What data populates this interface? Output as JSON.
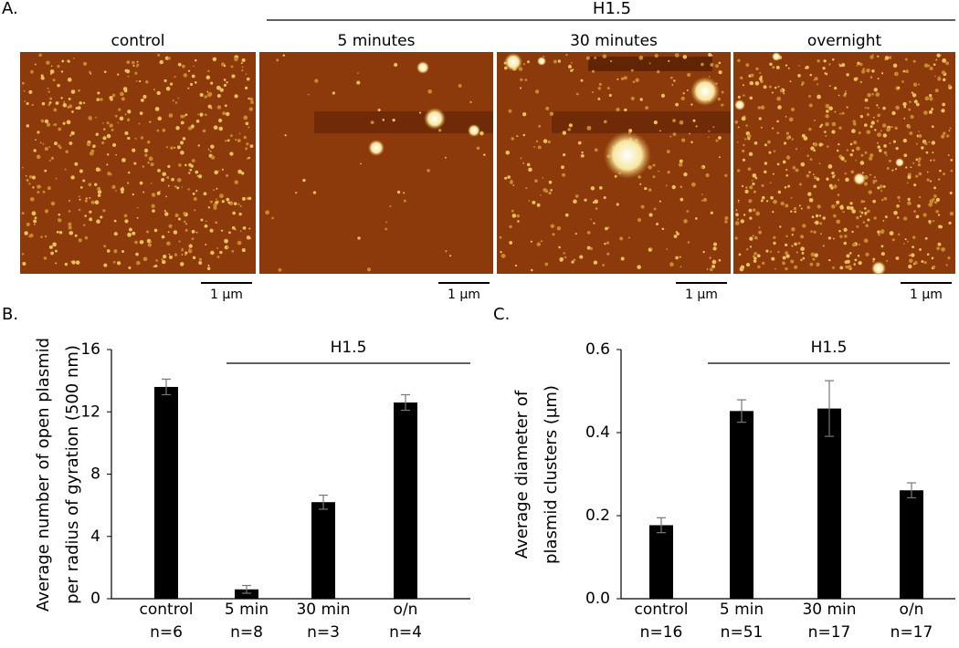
{
  "panel_a": {
    "label": "A.",
    "group_label": "H1.5",
    "images": [
      {
        "title": "control",
        "scale": "1 µm"
      },
      {
        "title": "5 minutes",
        "scale": "1 µm"
      },
      {
        "title": "30 minutes",
        "scale": "1 µm"
      },
      {
        "title": "overnight",
        "scale": "1 µm"
      }
    ]
  },
  "chart_data": [
    {
      "type": "bar",
      "panel": "B.",
      "ylabel": [
        "Average number of open plasmid",
        "per radius of gyration (500 nm)"
      ],
      "annotation": "H1.5",
      "categories": [
        "control",
        "5 min",
        "30 min",
        "o/n"
      ],
      "sample_sizes": [
        "n=6",
        "n=8",
        "n=3",
        "n=4"
      ],
      "values": [
        13.6,
        0.6,
        6.2,
        12.6
      ],
      "errors": [
        0.5,
        0.25,
        0.45,
        0.5
      ],
      "color": "#000000",
      "ylim": [
        0,
        16
      ],
      "yticks": [
        0,
        4,
        8,
        12,
        16
      ]
    },
    {
      "type": "bar",
      "panel": "C.",
      "ylabel": [
        "Average diameter of",
        "plasmid clusters (µm)"
      ],
      "annotation": "H1.5",
      "categories": [
        "control",
        "5 min",
        "30 min",
        "o/n"
      ],
      "sample_sizes": [
        "n=16",
        "n=51",
        "n=17",
        "n=17"
      ],
      "values": [
        0.177,
        0.452,
        0.458,
        0.261
      ],
      "errors": [
        0.018,
        0.027,
        0.067,
        0.018
      ],
      "color": "#000000",
      "ylim": [
        0,
        0.6
      ],
      "yticks": [
        {
          "value": 0,
          "label": "0.0"
        },
        0.2,
        0.4,
        0.6
      ]
    }
  ]
}
